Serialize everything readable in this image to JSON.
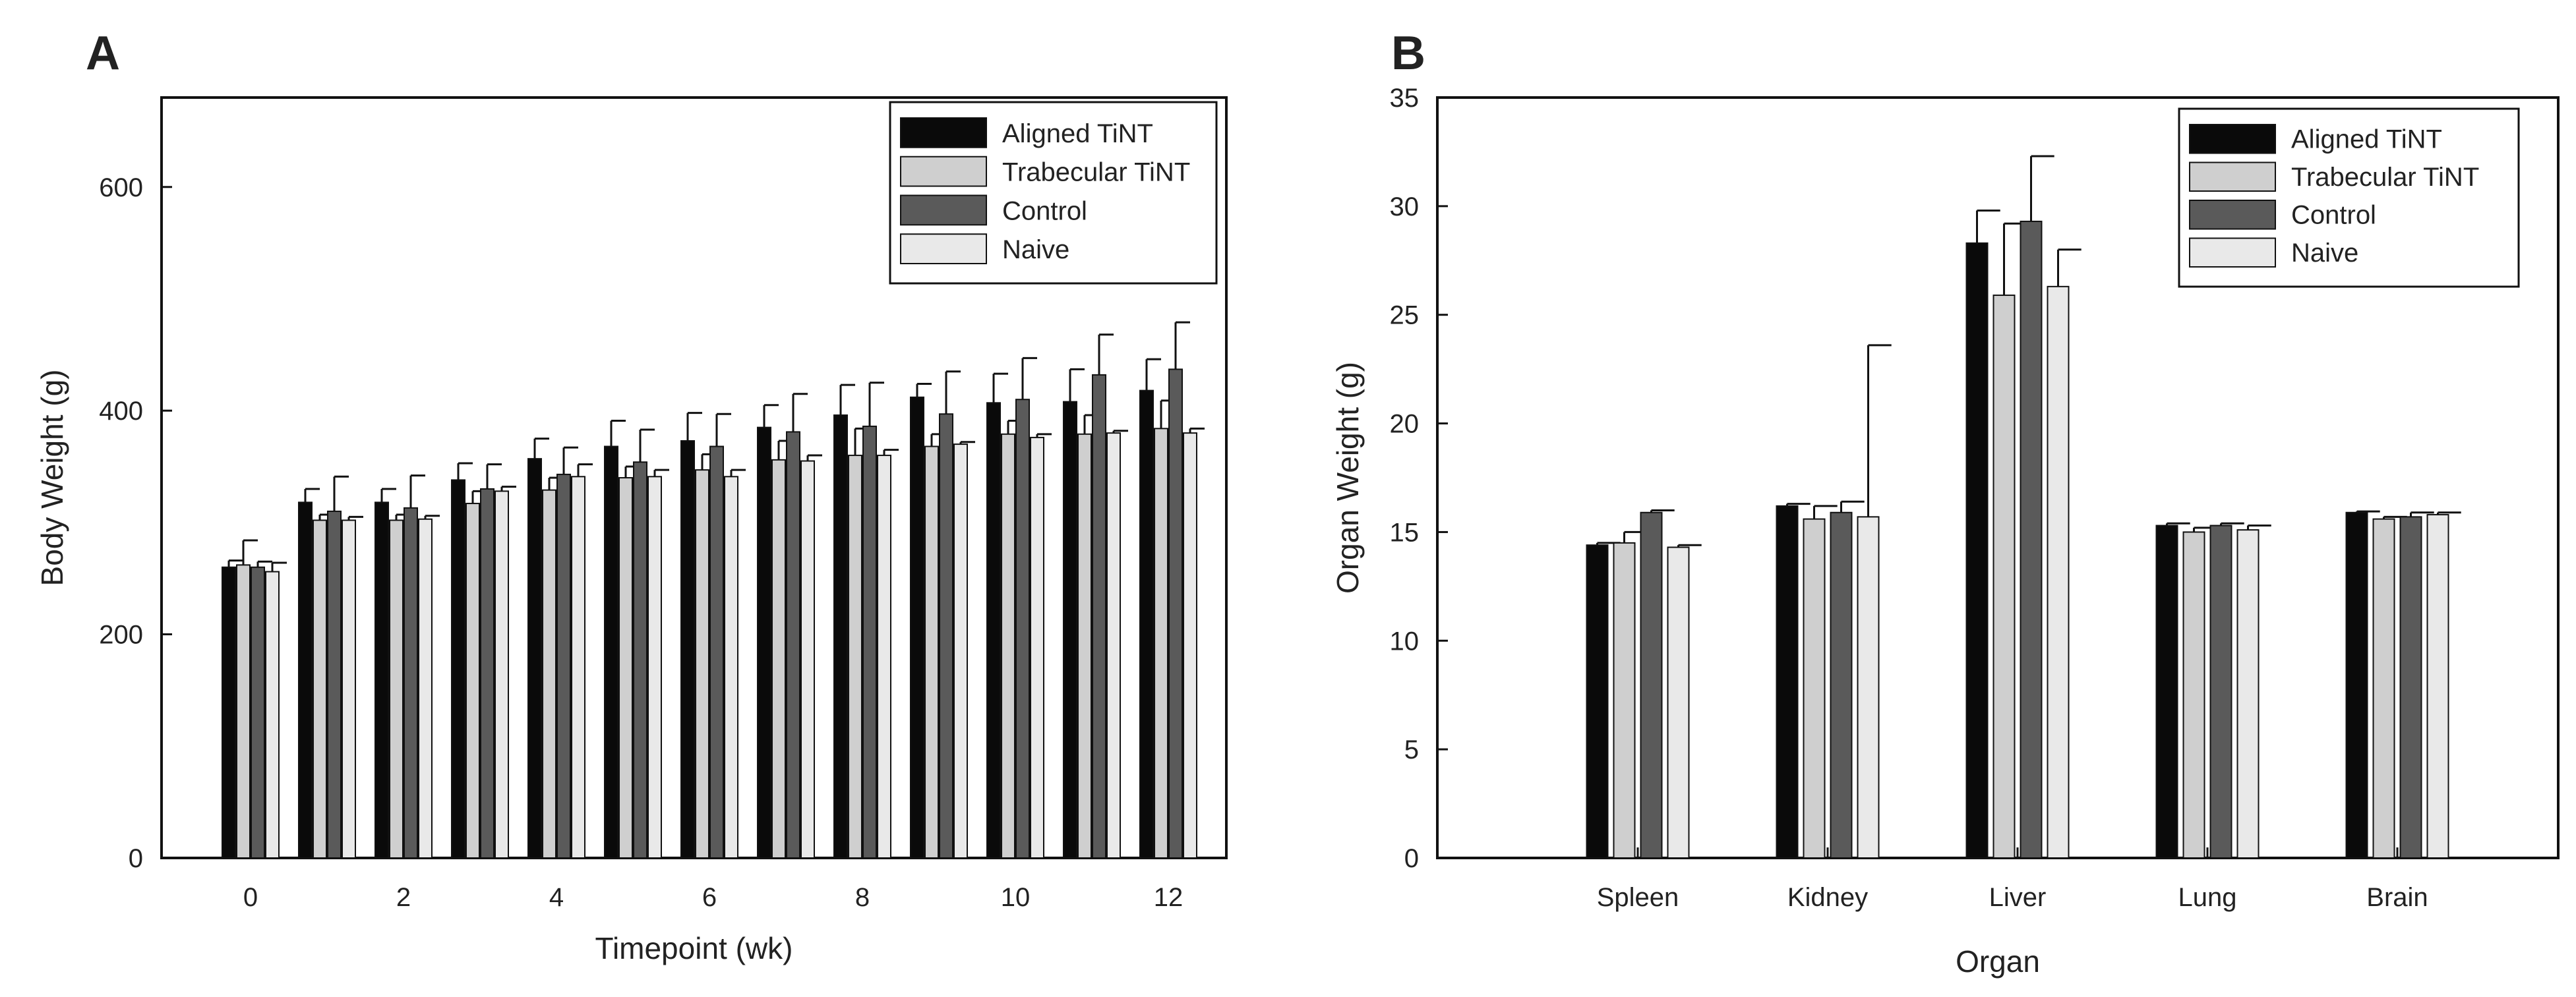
{
  "chart_data": [
    {
      "panel": "A",
      "type": "bar",
      "title": "",
      "xlabel": "Timepoint (wk)",
      "ylabel": "Body Weight (g)",
      "ylim": [
        0,
        680
      ],
      "yticks": [
        0,
        200,
        400,
        600
      ],
      "categories": [
        "0",
        "1",
        "2",
        "3",
        "4",
        "5",
        "6",
        "7",
        "8",
        "9",
        "10",
        "11",
        "12"
      ],
      "xtick_labels": [
        "0",
        "2",
        "4",
        "6",
        "8",
        "10",
        "12"
      ],
      "legend": "top-right",
      "series": [
        {
          "name": "Aligned TiNT",
          "color": "#0a0a0a",
          "values": [
            260,
            318,
            318,
            338,
            357,
            368,
            373,
            385,
            396,
            412,
            407,
            408,
            418
          ],
          "errors": [
            6,
            12,
            12,
            15,
            18,
            23,
            25,
            20,
            27,
            12,
            26,
            29,
            28
          ]
        },
        {
          "name": "Trabecular TiNT",
          "color": "#cfcfcf",
          "values": [
            262,
            302,
            302,
            317,
            329,
            340,
            347,
            356,
            360,
            368,
            379,
            379,
            384
          ],
          "errors": [
            22,
            5,
            5,
            11,
            11,
            10,
            14,
            17,
            24,
            11,
            12,
            17,
            25
          ]
        },
        {
          "name": "Control",
          "color": "#5a5a5a",
          "values": [
            260,
            310,
            313,
            330,
            343,
            354,
            368,
            381,
            386,
            397,
            410,
            432,
            437
          ],
          "errors": [
            5,
            31,
            29,
            22,
            24,
            29,
            29,
            34,
            39,
            38,
            37,
            36,
            42
          ]
        },
        {
          "name": "Naive",
          "color": "#e9e9e9",
          "values": [
            256,
            302,
            303,
            328,
            341,
            341,
            341,
            355,
            360,
            370,
            376,
            380,
            380
          ],
          "errors": [
            8,
            3,
            3,
            4,
            11,
            6,
            6,
            5,
            5,
            2,
            3,
            2,
            4
          ]
        }
      ]
    },
    {
      "panel": "B",
      "type": "bar",
      "title": "",
      "xlabel": "Organ",
      "ylabel": "Organ Weight (g)",
      "ylim": [
        0,
        35
      ],
      "yticks": [
        0,
        5,
        10,
        15,
        20,
        25,
        30,
        35
      ],
      "categories": [
        "Spleen",
        "Kidney",
        "Liver",
        "Lung",
        "Brain"
      ],
      "legend": "top-right",
      "series": [
        {
          "name": "Aligned TiNT",
          "color": "#0a0a0a",
          "values": [
            14.4,
            16.2,
            28.3,
            15.3,
            15.9
          ],
          "errors": [
            0.1,
            0.1,
            1.5,
            0.1,
            0.05
          ]
        },
        {
          "name": "Trabecular TiNT",
          "color": "#cfcfcf",
          "values": [
            14.5,
            15.6,
            25.9,
            15.0,
            15.6
          ],
          "errors": [
            0.5,
            0.6,
            3.3,
            0.2,
            0.1
          ]
        },
        {
          "name": "Control",
          "color": "#5a5a5a",
          "values": [
            15.9,
            15.9,
            29.3,
            15.3,
            15.7
          ],
          "errors": [
            0.1,
            0.5,
            3.0,
            0.1,
            0.2
          ]
        },
        {
          "name": "Naive",
          "color": "#e9e9e9",
          "values": [
            14.3,
            15.7,
            26.3,
            15.1,
            15.8
          ],
          "errors": [
            0.1,
            7.9,
            1.7,
            0.2,
            0.1
          ]
        }
      ]
    }
  ]
}
